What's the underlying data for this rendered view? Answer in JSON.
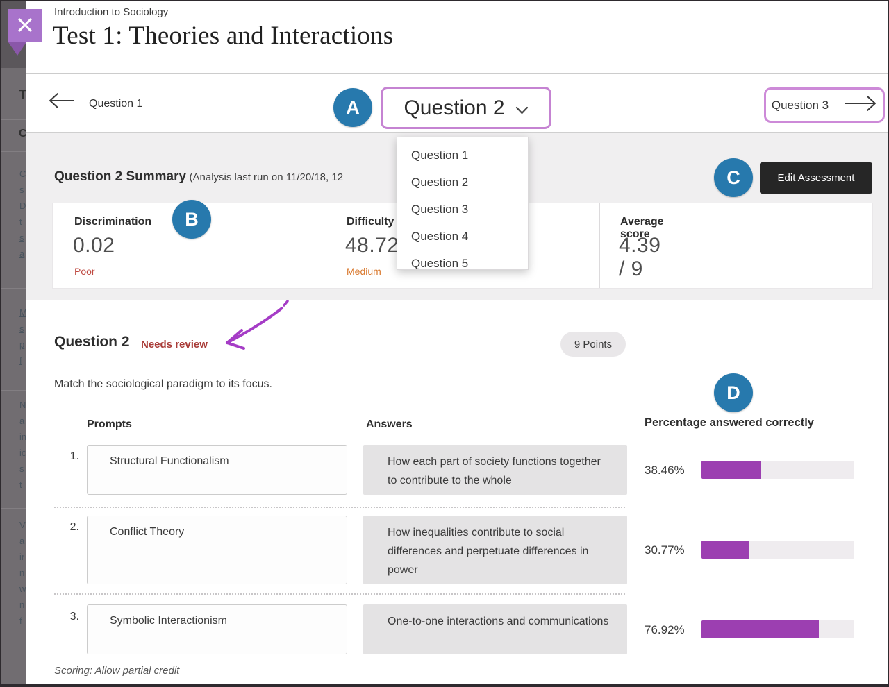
{
  "window": {
    "course_label": "Introduction to Sociology",
    "title": "Test 1: Theories and Interactions"
  },
  "nav": {
    "prev": "Question 1",
    "current": "Question 2",
    "next": "Question 3"
  },
  "question_dropdown": [
    "Question 1",
    "Question 2",
    "Question 3",
    "Question 4",
    "Question 5"
  ],
  "callouts": {
    "a": "A",
    "b": "B",
    "c": "C",
    "d": "D"
  },
  "summary": {
    "heading": "Question 2 Summary",
    "analysis_note": "(Analysis last run on 11/20/18, 12",
    "edit_button": "Edit Assessment",
    "stats": [
      {
        "label": "Discrimination",
        "value": "0.02",
        "qualifier": "Poor"
      },
      {
        "label": "Difficulty",
        "value": "48.72%",
        "qualifier": "Medium"
      },
      {
        "label": "Average score",
        "value": "4.39 / 9",
        "qualifier": ""
      }
    ]
  },
  "question": {
    "heading": "Question 2",
    "review_flag": "Needs review",
    "points_badge": "9 Points",
    "stem": "Match the sociological paradigm to its focus.",
    "prompts_header": "Prompts",
    "answers_header": "Answers",
    "rows": [
      {
        "number": "1.",
        "prompt": "Structural Functionalism",
        "answer": "How each part of society functions together to contribute to the whole",
        "percent_label": "38.46%",
        "percent": 38.46
      },
      {
        "number": "2.",
        "prompt": "Conflict Theory",
        "answer": "How inequalities contribute to social differences and perpetuate differences in power",
        "percent_label": "30.77%",
        "percent": 30.77
      },
      {
        "number": "3.",
        "prompt": "Symbolic Interactionism",
        "answer": "One-to-one interactions and communications",
        "percent_label": "76.92%",
        "percent": 76.92
      }
    ],
    "scoring_note": "Scoring: Allow partial credit"
  },
  "chart_data": {
    "type": "bar",
    "title": "Percentage answered correctly",
    "categories": [
      "Structural Functionalism",
      "Conflict Theory",
      "Symbolic Interactionism"
    ],
    "values": [
      38.46,
      30.77,
      76.92
    ],
    "unit": "%",
    "xlim": [
      0,
      100
    ]
  },
  "colors": {
    "accent_purple": "#9c3fb1",
    "outline_purple": "#c583d2",
    "ribbon_purple": "#a873cb",
    "callout_blue": "#2779ad",
    "review_red": "#a93c38",
    "poor_red": "#bf4a42",
    "medium_orange": "#d9782d",
    "band_gray": "#f0eff0",
    "answer_gray": "#e4e3e4"
  },
  "background_page": {
    "heading_fragment_1": "T",
    "heading_fragment_2": "C",
    "link_fragments_1": [
      "C",
      "s",
      "D",
      "t",
      "s",
      "a"
    ],
    "link_fragments_2": [
      "M",
      "s",
      "p",
      "f"
    ],
    "link_fragments_3": [
      "N",
      "a",
      "in",
      "ic",
      "s",
      "t"
    ],
    "link_fragments_4": [
      "V",
      "a",
      "ir",
      "n",
      "w",
      "n",
      "f"
    ]
  }
}
